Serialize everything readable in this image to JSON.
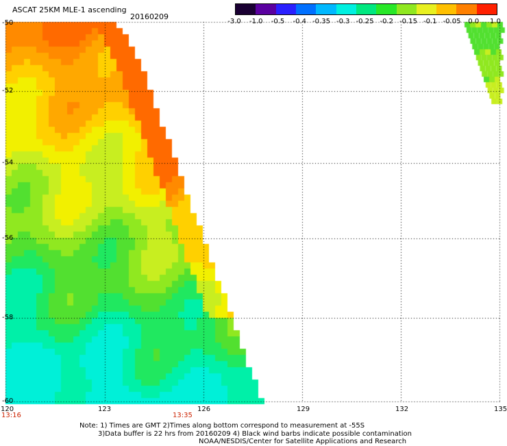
{
  "header": {
    "title": "ASCAT 25KM MLE-1 ascending",
    "date": "20160209"
  },
  "colorbar": {
    "labels": [
      "-3.0",
      "-1.0",
      "-0.5",
      "-0.4",
      "-0.35",
      "-0.3",
      "-0.25",
      "-0.2",
      "-0.15",
      "-0.1",
      "-0.05",
      "0.0",
      "1.0"
    ],
    "colors": [
      "#1a0033",
      "#5a00a0",
      "#2a20ff",
      "#0070ff",
      "#00b8ff",
      "#00f0e0",
      "#00e880",
      "#28e828",
      "#90e820",
      "#e8f020",
      "#ffc000",
      "#ff8000",
      "#ff2000"
    ]
  },
  "axes": {
    "lat_labels": [
      "-50",
      "-52",
      "-54",
      "-56",
      "-58",
      "-60"
    ],
    "lon_labels": [
      "120",
      "123",
      "126",
      "129",
      "132",
      "135"
    ],
    "time_labels": [
      "13:16",
      "13:35"
    ]
  },
  "notes": [
    "Note: 1) Times are GMT 2)Times along bottom correspond to measurement at -55S",
    "3)Data buffer is 22 hrs from 20160209 4) Black wind barbs indicate possible contamination",
    "NOAA/NESDIS/Center for Satellite Applications and Research"
  ]
}
